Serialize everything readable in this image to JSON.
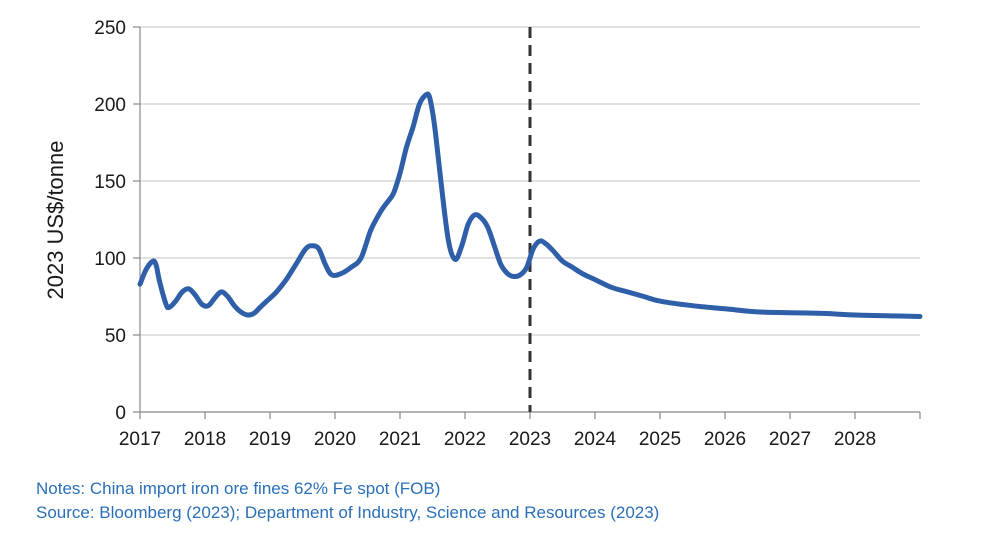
{
  "chart_data": {
    "type": "line",
    "ylabel": "2023 US$/tonne",
    "xlabel": "",
    "ylim": [
      0,
      250
    ],
    "yticks": [
      0,
      50,
      100,
      150,
      200,
      250
    ],
    "xlim": [
      2017,
      2029
    ],
    "xticks": [
      "2017",
      "2018",
      "2019",
      "2020",
      "2021",
      "2022",
      "2023",
      "2024",
      "2025",
      "2026",
      "2027",
      "2028"
    ],
    "grid": "horizontal",
    "forecast_divider_x": 2023,
    "line_color": "#2e5fa8",
    "series": [
      {
        "x": [
          2017.0,
          2017.1,
          2017.2,
          2017.25,
          2017.3,
          2017.4,
          2017.45,
          2017.55,
          2017.65,
          2017.75,
          2017.85,
          2017.95,
          2018.05,
          2018.15,
          2018.25,
          2018.35,
          2018.45,
          2018.55,
          2018.65,
          2018.75,
          2018.85,
          2018.95,
          2019.1,
          2019.25,
          2019.4,
          2019.55,
          2019.65,
          2019.75,
          2019.85,
          2019.95,
          2020.1,
          2020.25,
          2020.4,
          2020.55,
          2020.7,
          2020.8,
          2020.9,
          2021.0,
          2021.1,
          2021.2,
          2021.3,
          2021.4,
          2021.45,
          2021.5,
          2021.55,
          2021.65,
          2021.75,
          2021.85,
          2021.95,
          2022.05,
          2022.15,
          2022.25,
          2022.35,
          2022.45,
          2022.55,
          2022.65,
          2022.75,
          2022.85,
          2022.95,
          2023.05,
          2023.15,
          2023.25,
          2023.35,
          2023.5,
          2023.65,
          2023.8,
          2024.0,
          2024.25,
          2024.5,
          2024.75,
          2025.0,
          2025.5,
          2026.0,
          2026.5,
          2027.0,
          2027.5,
          2028.0,
          2028.5,
          2029.0
        ],
        "values": [
          83,
          93,
          98,
          95,
          85,
          70,
          68,
          72,
          78,
          80,
          76,
          70,
          69,
          74,
          78,
          75,
          69,
          65,
          63,
          64,
          68,
          72,
          78,
          86,
          96,
          106,
          108,
          106,
          96,
          89,
          90,
          94,
          100,
          118,
          130,
          136,
          142,
          155,
          172,
          185,
          200,
          206,
          205,
          195,
          180,
          142,
          110,
          99,
          108,
          122,
          128,
          126,
          120,
          108,
          96,
          90,
          88,
          89,
          94,
          106,
          111,
          109,
          105,
          98,
          94,
          90,
          86,
          81,
          78,
          75,
          72,
          69,
          67,
          65,
          64.5,
          64,
          63,
          62.5,
          62
        ]
      }
    ]
  },
  "notes": {
    "line1": "Notes: China import iron ore fines 62% Fe spot (FOB)",
    "line2": "Source: Bloomberg (2023); Department of Industry, Science and Resources (2023)"
  }
}
